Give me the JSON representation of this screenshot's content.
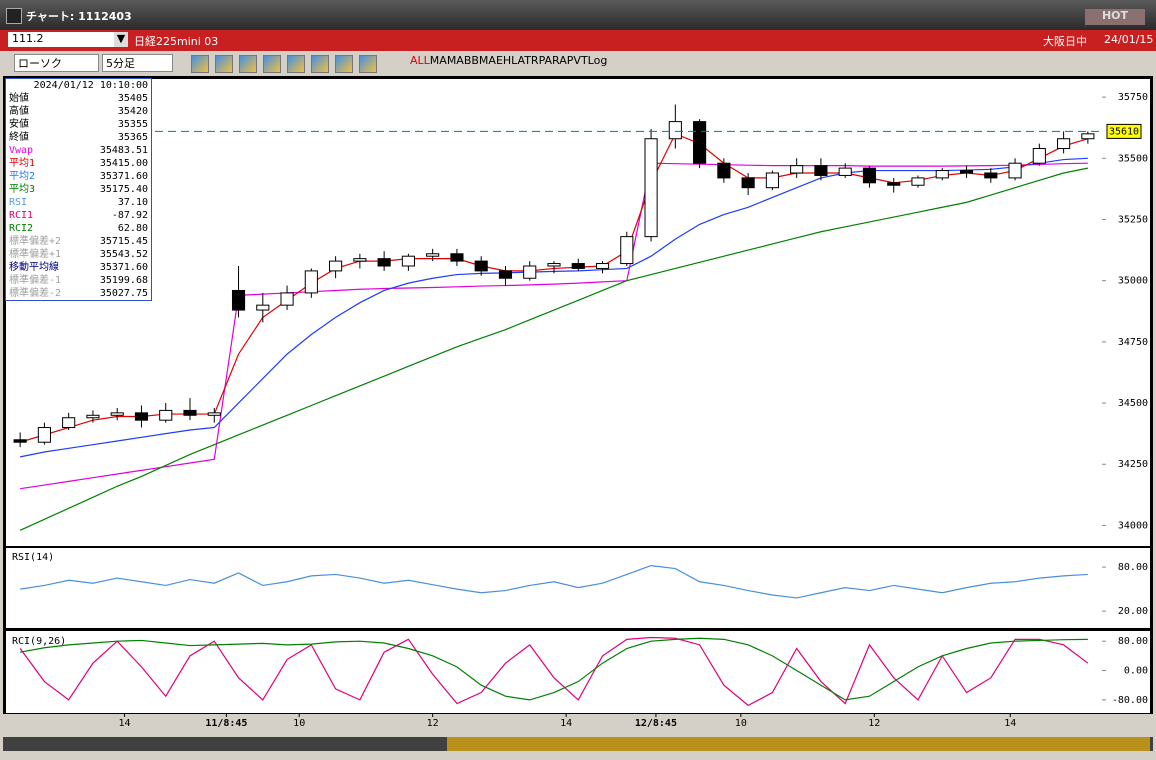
{
  "window": {
    "title": "チャート: 1112403",
    "hot": "HOT"
  },
  "symbol_bar": {
    "code": "111.2",
    "name": "日経225mini 03",
    "session": "大阪日中",
    "date": "24/01/15"
  },
  "toolbar": {
    "chart_style": "ローソク",
    "interval": "5分足",
    "buttons": [
      "ALL",
      "MA",
      "MA",
      "BB",
      "MAE",
      "HL",
      "ATR",
      "PARA",
      "PVT",
      "Log"
    ]
  },
  "info_panel": {
    "datetime": "2024/01/12  10:10:00",
    "rows": [
      {
        "label": "始値",
        "value": "35405",
        "color": "#000000"
      },
      {
        "label": "高値",
        "value": "35420",
        "color": "#000000"
      },
      {
        "label": "安値",
        "value": "35355",
        "color": "#000000"
      },
      {
        "label": "終値",
        "value": "35365",
        "color": "#000000"
      },
      {
        "label": "Vwap",
        "value": "35483.51",
        "color": "#e000e0"
      },
      {
        "label": "平均1",
        "value": "35415.00",
        "color": "#e00000"
      },
      {
        "label": "平均2",
        "value": "35371.60",
        "color": "#1e78ff"
      },
      {
        "label": "平均3",
        "value": "35175.40",
        "color": "#008000"
      },
      {
        "label": "RSI",
        "value": "37.10",
        "color": "#5a9bd5"
      },
      {
        "label": "RCI1",
        "value": "-87.92",
        "color": "#e0007a"
      },
      {
        "label": "RCI2",
        "value": "62.80",
        "color": "#008000"
      },
      {
        "label": "標準偏差+2",
        "value": "35715.45",
        "color": "#a0a0a0"
      },
      {
        "label": "標準偏差+1",
        "value": "35543.52",
        "color": "#a0a0a0"
      },
      {
        "label": "移動平均線",
        "value": "35371.60",
        "color": "#000080"
      },
      {
        "label": "標準偏差-1",
        "value": "35199.68",
        "color": "#a0a0a0"
      },
      {
        "label": "標準偏差-2",
        "value": "35027.75",
        "color": "#a0a0a0"
      }
    ]
  },
  "chart_data": [
    {
      "type": "candlestick",
      "xlim": [
        -0.5,
        44.5
      ],
      "ylim": [
        33920,
        35820
      ],
      "yticks": [
        34000,
        34250,
        34500,
        34750,
        35000,
        35250,
        35500,
        35750
      ],
      "x": [
        0,
        1,
        2,
        3,
        4,
        5,
        6,
        7,
        8,
        9,
        10,
        11,
        12,
        13,
        14,
        15,
        16,
        17,
        18,
        19,
        20,
        21,
        22,
        23,
        24,
        25,
        26,
        27,
        28,
        29,
        30,
        31,
        32,
        33,
        34,
        35,
        36,
        37,
        38,
        39,
        40,
        41,
        42,
        43,
        44
      ],
      "open": [
        34350,
        34340,
        34400,
        34440,
        34450,
        34460,
        34430,
        34470,
        34450,
        34960,
        34880,
        34900,
        34950,
        35040,
        35080,
        35090,
        35060,
        35100,
        35110,
        35080,
        35040,
        35010,
        35060,
        35070,
        35050,
        35070,
        35180,
        35580,
        35650,
        35480,
        35420,
        35380,
        35440,
        35470,
        35430,
        35460,
        35400,
        35390,
        35420,
        35450,
        35440,
        35420,
        35480,
        35540,
        35580
      ],
      "high": [
        34380,
        34420,
        34460,
        34470,
        34480,
        34490,
        34500,
        34520,
        34480,
        35060,
        34950,
        34980,
        35050,
        35100,
        35110,
        35120,
        35110,
        35130,
        35130,
        35100,
        35060,
        35080,
        35080,
        35090,
        35080,
        35200,
        35620,
        35720,
        35660,
        35500,
        35440,
        35450,
        35500,
        35500,
        35480,
        35470,
        35420,
        35430,
        35460,
        35470,
        35460,
        35500,
        35560,
        35610,
        35610
      ],
      "low": [
        34320,
        34330,
        34390,
        34420,
        34430,
        34400,
        34420,
        34430,
        34420,
        34850,
        34830,
        34880,
        34930,
        35010,
        35050,
        35040,
        35040,
        35080,
        35060,
        35020,
        34980,
        35000,
        35030,
        35040,
        35030,
        35060,
        35160,
        35540,
        35460,
        35400,
        35350,
        35370,
        35420,
        35410,
        35420,
        35380,
        35360,
        35380,
        35410,
        35420,
        35400,
        35410,
        35470,
        35520,
        35560
      ],
      "close": [
        34340,
        34400,
        34440,
        34450,
        34460,
        34430,
        34470,
        34450,
        34460,
        34880,
        34900,
        34950,
        35040,
        35080,
        35090,
        35060,
        35100,
        35110,
        35080,
        35040,
        35010,
        35060,
        35070,
        35050,
        35070,
        35180,
        35580,
        35650,
        35480,
        35420,
        35380,
        35440,
        35470,
        35430,
        35460,
        35400,
        35390,
        35420,
        35450,
        35440,
        35420,
        35480,
        35540,
        35580,
        35600
      ],
      "series": [
        {
          "color": "#e000e0",
          "values": [
            34150,
            34165,
            34180,
            34195,
            34210,
            34225,
            34240,
            34255,
            34270,
            34940,
            34945,
            34950,
            34955,
            34960,
            34965,
            34968,
            34970,
            34972,
            34975,
            34978,
            34980,
            34983,
            34986,
            34990,
            34995,
            35000,
            35480,
            35478,
            35476,
            35474,
            35472,
            35470,
            35470,
            35470,
            35470,
            35468,
            35468,
            35468,
            35468,
            35469,
            35470,
            35472,
            35475,
            35478,
            35480
          ]
        },
        {
          "color": "#008000",
          "values": [
            33980,
            34025,
            34070,
            34115,
            34160,
            34200,
            34245,
            34290,
            34330,
            34370,
            34410,
            34450,
            34490,
            34530,
            34570,
            34610,
            34650,
            34690,
            34730,
            34765,
            34800,
            34840,
            34880,
            34920,
            34960,
            35000,
            35025,
            35050,
            35075,
            35100,
            35125,
            35150,
            35175,
            35200,
            35220,
            35240,
            35260,
            35280,
            35300,
            35320,
            35350,
            35380,
            35410,
            35440,
            35460
          ]
        },
        {
          "color": "#1e3cff",
          "values": [
            34280,
            34300,
            34315,
            34330,
            34345,
            34360,
            34375,
            34390,
            34400,
            34500,
            34600,
            34700,
            34780,
            34850,
            34910,
            34960,
            34990,
            35010,
            35025,
            35030,
            35032,
            35035,
            35038,
            35040,
            35045,
            35050,
            35100,
            35170,
            35230,
            35270,
            35300,
            35340,
            35380,
            35420,
            35440,
            35450,
            35450,
            35450,
            35450,
            35452,
            35455,
            35465,
            35480,
            35495,
            35500
          ]
        },
        {
          "color": "#e00000",
          "values": [
            34340,
            34370,
            34400,
            34430,
            34445,
            34445,
            34455,
            34455,
            34455,
            34700,
            34850,
            34920,
            34990,
            35050,
            35080,
            35080,
            35090,
            35090,
            35090,
            35060,
            35040,
            35040,
            35050,
            35055,
            35060,
            35120,
            35400,
            35600,
            35560,
            35480,
            35420,
            35420,
            35440,
            35440,
            35440,
            35420,
            35400,
            35410,
            35430,
            35440,
            35430,
            35450,
            35500,
            35550,
            35580
          ]
        }
      ],
      "marker": {
        "value": 35610,
        "color": "#008080"
      }
    },
    {
      "type": "line",
      "title": "RSI(14)",
      "xlim": [
        -0.5,
        44.5
      ],
      "ylim": [
        -3,
        106
      ],
      "yticks": [
        {
          "value": 80,
          "label": "80.00"
        },
        {
          "value": 20,
          "label": "20.00"
        }
      ],
      "series": [
        {
          "color": "#4a8fdc",
          "values": [
            50,
            55,
            62,
            58,
            65,
            60,
            55,
            63,
            58,
            72,
            55,
            60,
            68,
            70,
            65,
            58,
            62,
            56,
            50,
            45,
            48,
            55,
            60,
            52,
            58,
            70,
            82,
            78,
            60,
            55,
            48,
            42,
            38,
            45,
            52,
            48,
            55,
            50,
            45,
            52,
            58,
            60,
            65,
            68,
            70
          ]
        }
      ]
    },
    {
      "type": "line",
      "title": "RCI(9,26)",
      "xlim": [
        -0.5,
        44.5
      ],
      "ylim": [
        -113,
        105
      ],
      "yticks": [
        {
          "value": 80,
          "label": "80.00"
        },
        {
          "value": 0,
          "label": "0.00"
        },
        {
          "value": -80,
          "label": "-80.00"
        }
      ],
      "xticks": [
        {
          "value": 4.3,
          "label": "14"
        },
        {
          "value": 8.5,
          "label": "11/8:45"
        },
        {
          "value": 11.5,
          "label": "10"
        },
        {
          "value": 17,
          "label": "12"
        },
        {
          "value": 22.5,
          "label": "14"
        },
        {
          "value": 26.2,
          "label": "12/8:45"
        },
        {
          "value": 29.7,
          "label": "10"
        },
        {
          "value": 35.2,
          "label": "12"
        },
        {
          "value": 40.8,
          "label": "14"
        }
      ],
      "series": [
        {
          "color": "#e0007a",
          "values": [
            60,
            -30,
            -80,
            20,
            80,
            10,
            -70,
            40,
            80,
            -20,
            -80,
            30,
            70,
            -50,
            -80,
            50,
            85,
            -10,
            -90,
            -60,
            20,
            70,
            -20,
            -80,
            40,
            85,
            90,
            88,
            70,
            -40,
            -95,
            -60,
            60,
            -30,
            -90,
            70,
            -20,
            -80,
            40,
            -60,
            -20,
            85,
            85,
            70,
            20
          ]
        },
        {
          "color": "#008000",
          "values": [
            50,
            62,
            70,
            75,
            80,
            82,
            75,
            68,
            70,
            72,
            74,
            70,
            72,
            78,
            80,
            75,
            60,
            40,
            10,
            -40,
            -70,
            -80,
            -60,
            -30,
            20,
            60,
            80,
            85,
            88,
            85,
            70,
            40,
            0,
            -40,
            -80,
            -70,
            -30,
            10,
            40,
            60,
            75,
            80,
            82,
            84,
            85
          ]
        }
      ]
    }
  ]
}
